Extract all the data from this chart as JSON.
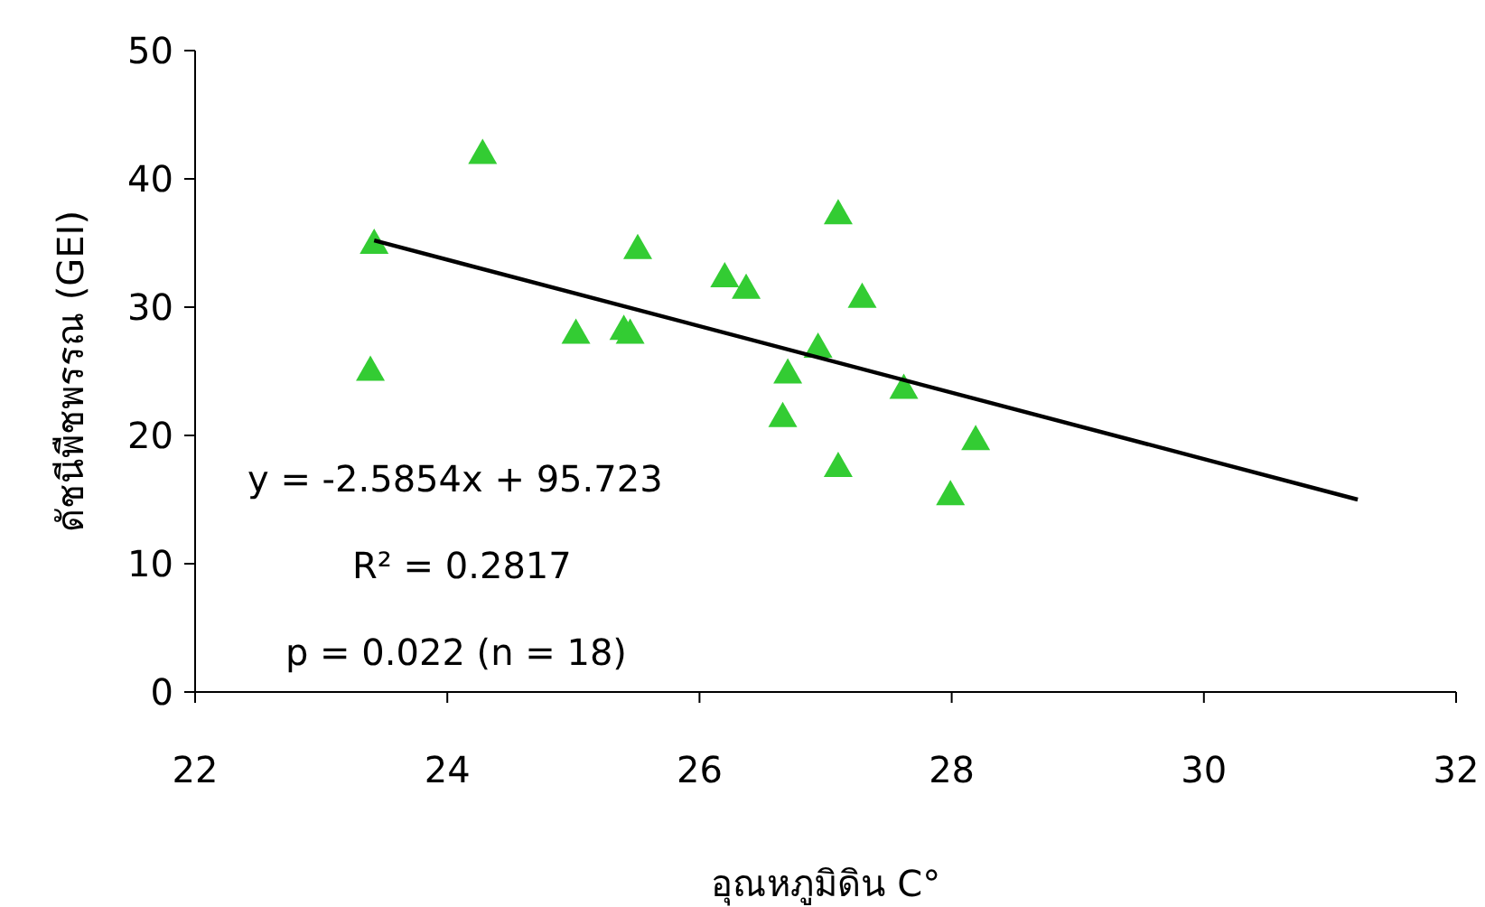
{
  "chart_data": {
    "type": "scatter",
    "xlabel": "อุณหภูมิดิน C°",
    "ylabel": "ดัชนีพืชพรรณ (GEI)",
    "x": [
      23.42,
      23.39,
      24.28,
      25.02,
      25.51,
      25.4,
      25.45,
      26.2,
      26.37,
      26.7,
      26.66,
      26.94,
      27.1,
      27.29,
      27.1,
      27.62,
      28.19,
      27.99
    ],
    "series": [
      {
        "color": "#33cc33",
        "marker": "triangle",
        "values": [
          35.0,
          25.1,
          42.0,
          28.0,
          34.6,
          28.3,
          28.0,
          32.4,
          31.5,
          24.9,
          21.5,
          26.9,
          37.3,
          30.8,
          17.6,
          23.7,
          19.7,
          15.4
        ]
      },
      {
        "type": "line",
        "color": "#000000",
        "x": [
          23.42,
          31.22
        ],
        "values": [
          35.2,
          15.0
        ]
      }
    ],
    "xlim": [
      22,
      32
    ],
    "ylim": [
      0,
      50
    ],
    "xticks": [
      22,
      24,
      26,
      28,
      30,
      32
    ],
    "yticks": [
      0,
      10,
      20,
      30,
      40,
      50
    ],
    "grid": false,
    "annotations": [
      "y = -2.5854x + 95.723",
      "R² = 0.2817",
      "p = 0.022 (n = 18)"
    ]
  }
}
